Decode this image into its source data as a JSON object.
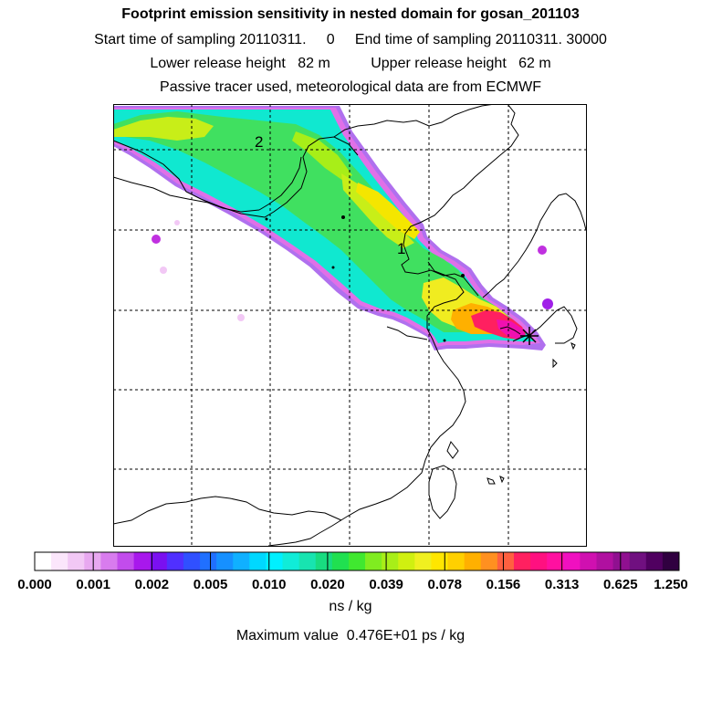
{
  "header": {
    "title": "Footprint emission sensitivity in nested domain for gosan_201103",
    "sampling_line": "Start time of sampling 20110311.     0     End time of sampling 20110311. 30000",
    "release_line": "Lower release height   82 m          Upper release height   62 m",
    "tracer_line": "Passive tracer used, meteorological data are from ECMWF"
  },
  "map": {
    "labels": [
      {
        "text": "2"
      },
      {
        "text": "1"
      }
    ],
    "receptor_marker": "star-marker"
  },
  "colorbar": {
    "tick_labels": [
      "0.000",
      "0.001",
      "0.002",
      "0.005",
      "0.010",
      "0.020",
      "0.039",
      "0.078",
      "0.156",
      "0.313",
      "0.625",
      "1.250"
    ],
    "colors": [
      "#ffffff",
      "#fbe6fb",
      "#f2c8f5",
      "#e8a8f0",
      "#d87cee",
      "#c24cec",
      "#a818ec",
      "#7a10f0",
      "#5030ff",
      "#3050ff",
      "#2070ff",
      "#1690ff",
      "#10b0ff",
      "#00d8ff",
      "#00f0ff",
      "#10ecd8",
      "#18e4b0",
      "#18dc80",
      "#20e050",
      "#40e830",
      "#80ec20",
      "#a8ee18",
      "#d0f010",
      "#f0f020",
      "#ffe600",
      "#ffd000",
      "#ffb000",
      "#ff9020",
      "#ff6040",
      "#ff2060",
      "#ff1080",
      "#ff10a0",
      "#f010c0",
      "#d010b0",
      "#b010a0",
      "#901090",
      "#701080",
      "#500060",
      "#300040"
    ],
    "units": "ns / kg",
    "max_value_text": "Maximum value  0.476E+01 ps / kg"
  }
}
